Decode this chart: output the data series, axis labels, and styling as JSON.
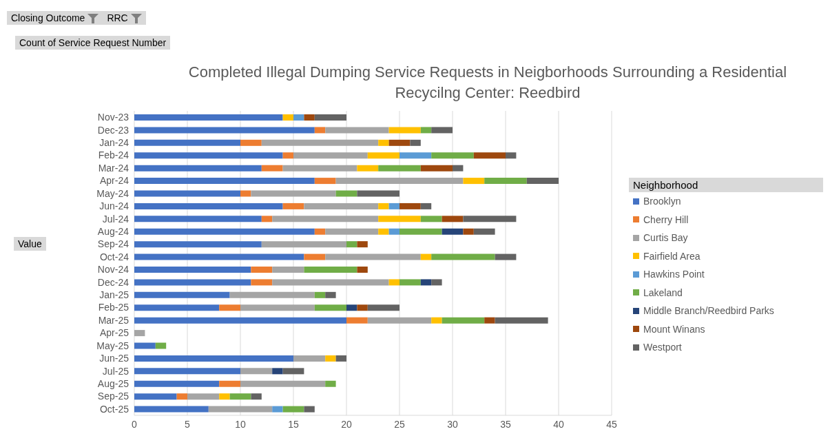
{
  "chart_data": {
    "type": "bar",
    "orientation": "horizontal",
    "stacked": true,
    "title": "Completed Illegal Dumping Service Requests in Neigborhoods Surrounding a Residential Recycilng Center: Reedbird",
    "legend_title": "Neighborhood",
    "annotations": [
      "Closing Outcome",
      "RRC",
      "Count of Service Request Number",
      "Value"
    ],
    "categories": [
      "Nov-23",
      "Dec-23",
      "Jan-24",
      "Feb-24",
      "Mar-24",
      "Apr-24",
      "May-24",
      "Jun-24",
      "Jul-24",
      "Aug-24",
      "Sep-24",
      "Oct-24",
      "Nov-24",
      "Dec-24",
      "Jan-25",
      "Feb-25",
      "Mar-25",
      "Apr-25",
      "May-25",
      "Jun-25",
      "Jul-25",
      "Aug-25",
      "Sep-25",
      "Oct-25"
    ],
    "series": [
      {
        "name": "Brooklyn",
        "color": "#4472c4",
        "values": [
          14,
          17,
          10,
          14,
          12,
          17,
          10,
          14,
          12,
          17,
          12,
          16,
          11,
          11,
          9,
          8,
          20,
          null,
          2,
          15,
          10,
          8,
          4,
          7
        ]
      },
      {
        "name": "Cherry Hill",
        "color": "#ed7d31",
        "values": [
          null,
          1,
          2,
          1,
          2,
          2,
          1,
          2,
          1,
          1,
          null,
          2,
          2,
          2,
          null,
          2,
          2,
          null,
          null,
          null,
          null,
          2,
          1,
          null
        ]
      },
      {
        "name": "Curtis Bay",
        "color": "#a5a5a5",
        "values": [
          null,
          6,
          11,
          7,
          7,
          12,
          8,
          7,
          10,
          5,
          8,
          9,
          3,
          11,
          8,
          7,
          6,
          1,
          null,
          3,
          3,
          8,
          3,
          6
        ]
      },
      {
        "name": "Fairfield Area",
        "color": "#ffc000",
        "values": [
          1,
          3,
          1,
          3,
          2,
          2,
          null,
          1,
          4,
          1,
          null,
          1,
          null,
          1,
          null,
          null,
          1,
          null,
          null,
          1,
          null,
          null,
          1,
          null
        ]
      },
      {
        "name": "Hawkins Point",
        "color": "#5b9bd5",
        "values": [
          1,
          null,
          null,
          3,
          null,
          null,
          null,
          1,
          null,
          1,
          null,
          null,
          null,
          null,
          null,
          null,
          null,
          null,
          null,
          null,
          null,
          null,
          null,
          1
        ]
      },
      {
        "name": "Lakeland",
        "color": "#70ad47",
        "values": [
          null,
          1,
          null,
          4,
          4,
          4,
          2,
          null,
          2,
          4,
          1,
          6,
          5,
          2,
          1,
          3,
          4,
          null,
          1,
          null,
          null,
          1,
          2,
          2
        ]
      },
      {
        "name": "Middle Branch/Reedbird Parks",
        "color": "#264478",
        "values": [
          null,
          null,
          null,
          null,
          null,
          null,
          null,
          null,
          null,
          2,
          null,
          null,
          null,
          1,
          null,
          1,
          null,
          null,
          null,
          null,
          1,
          null,
          null,
          null
        ]
      },
      {
        "name": "Mount Winans",
        "color": "#9e480e",
        "values": [
          1,
          null,
          2,
          3,
          3,
          null,
          null,
          2,
          2,
          1,
          1,
          null,
          1,
          null,
          null,
          1,
          1,
          null,
          null,
          null,
          null,
          null,
          null,
          null
        ]
      },
      {
        "name": "Westport",
        "color": "#636363",
        "values": [
          3,
          2,
          1,
          1,
          1,
          3,
          4,
          1,
          5,
          2,
          null,
          2,
          null,
          1,
          1,
          3,
          5,
          null,
          null,
          1,
          2,
          null,
          1,
          1
        ]
      }
    ],
    "xlim": [
      0,
      45
    ],
    "xticks": [
      0,
      5,
      10,
      15,
      20,
      25,
      30,
      35,
      40,
      45
    ],
    "grid": "x",
    "legend": "right"
  }
}
